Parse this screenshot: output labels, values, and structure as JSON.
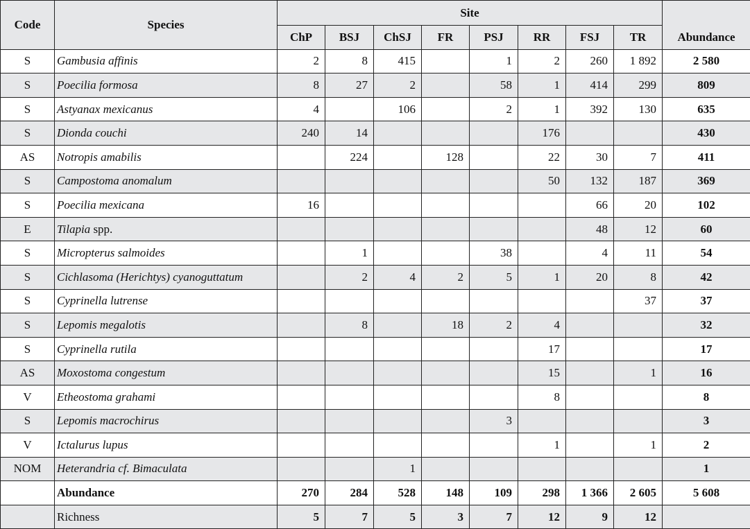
{
  "header": {
    "code": "Code",
    "species": "Species",
    "site": "Site",
    "sites": [
      "ChP",
      "BSJ",
      "ChSJ",
      "FR",
      "PSJ",
      "RR",
      "FSJ",
      "TR"
    ],
    "abundance": "Abundance"
  },
  "rows": [
    {
      "code": "S",
      "species": "Gambusia affinis",
      "suffix": "",
      "values": [
        "2",
        "8",
        "415",
        "",
        "1",
        "2",
        "260",
        "1 892"
      ],
      "total": "2 580"
    },
    {
      "code": "S",
      "species": "Poecilia formosa",
      "suffix": "",
      "values": [
        "8",
        "27",
        "2",
        "",
        "58",
        "1",
        "414",
        "299"
      ],
      "total": "809"
    },
    {
      "code": "S",
      "species": "Astyanax mexicanus",
      "suffix": "",
      "values": [
        "4",
        "",
        "106",
        "",
        "2",
        "1",
        "392",
        "130"
      ],
      "total": "635"
    },
    {
      "code": "S",
      "species": "Dionda couchi",
      "suffix": "",
      "values": [
        "240",
        "14",
        "",
        "",
        "",
        "176",
        "",
        ""
      ],
      "total": "430"
    },
    {
      "code": "AS",
      "species": "Notropis amabilis",
      "suffix": "",
      "values": [
        "",
        "224",
        "",
        "128",
        "",
        "22",
        "30",
        "7"
      ],
      "total": "411"
    },
    {
      "code": "S",
      "species": "Campostoma anomalum",
      "suffix": "",
      "values": [
        "",
        "",
        "",
        "",
        "",
        "50",
        "132",
        "187"
      ],
      "total": "369"
    },
    {
      "code": "S",
      "species": "Poecilia mexicana",
      "suffix": "",
      "values": [
        "16",
        "",
        "",
        "",
        "",
        "",
        "66",
        "20"
      ],
      "total": "102"
    },
    {
      "code": "E",
      "species": "Tilapia",
      "suffix": " spp.",
      "values": [
        "",
        "",
        "",
        "",
        "",
        "",
        "48",
        "12"
      ],
      "total": "60"
    },
    {
      "code": "S",
      "species": "Micropterus salmoides",
      "suffix": "",
      "values": [
        "",
        "1",
        "",
        "",
        "38",
        "",
        "4",
        "11"
      ],
      "total": "54"
    },
    {
      "code": "S",
      "species": "Cichlasoma (Herichtys) cyanoguttatum",
      "suffix": "",
      "values": [
        "",
        "2",
        "4",
        "2",
        "5",
        "1",
        "20",
        "8"
      ],
      "total": "42"
    },
    {
      "code": "S",
      "species": "Cyprinella lutrense",
      "suffix": "",
      "values": [
        "",
        "",
        "",
        "",
        "",
        "",
        "",
        "37"
      ],
      "total": "37"
    },
    {
      "code": "S",
      "species": "Lepomis megalotis",
      "suffix": "",
      "values": [
        "",
        "8",
        "",
        "18",
        "2",
        "4",
        "",
        ""
      ],
      "total": "32"
    },
    {
      "code": "S",
      "species": "Cyprinella rutila",
      "suffix": "",
      "values": [
        "",
        "",
        "",
        "",
        "",
        "17",
        "",
        ""
      ],
      "total": "17"
    },
    {
      "code": "AS",
      "species": "Moxostoma congestum",
      "suffix": "",
      "values": [
        "",
        "",
        "",
        "",
        "",
        "15",
        "",
        "1"
      ],
      "total": "16"
    },
    {
      "code": "V",
      "species": "Etheostoma grahami",
      "suffix": "",
      "values": [
        "",
        "",
        "",
        "",
        "",
        "8",
        "",
        ""
      ],
      "total": "8"
    },
    {
      "code": "S",
      "species": "Lepomis macrochirus",
      "suffix": "",
      "values": [
        "",
        "",
        "",
        "",
        "3",
        "",
        "",
        ""
      ],
      "total": "3"
    },
    {
      "code": "V",
      "species": "Ictalurus lupus",
      "suffix": "",
      "values": [
        "",
        "",
        "",
        "",
        "",
        "1",
        "",
        "1"
      ],
      "total": "2"
    },
    {
      "code": "NOM",
      "species": "Heterandria cf. Bimaculata",
      "suffix": "",
      "values": [
        "",
        "",
        "1",
        "",
        "",
        "",
        "",
        ""
      ],
      "total": "1"
    }
  ],
  "summary": [
    {
      "label": "Abundance",
      "values": [
        "270",
        "284",
        "528",
        "148",
        "109",
        "298",
        "1 366",
        "2 605"
      ],
      "total": "5 608"
    },
    {
      "label": "Richness",
      "values": [
        "5",
        "7",
        "5",
        "3",
        "7",
        "12",
        "9",
        "12"
      ],
      "total": ""
    }
  ]
}
